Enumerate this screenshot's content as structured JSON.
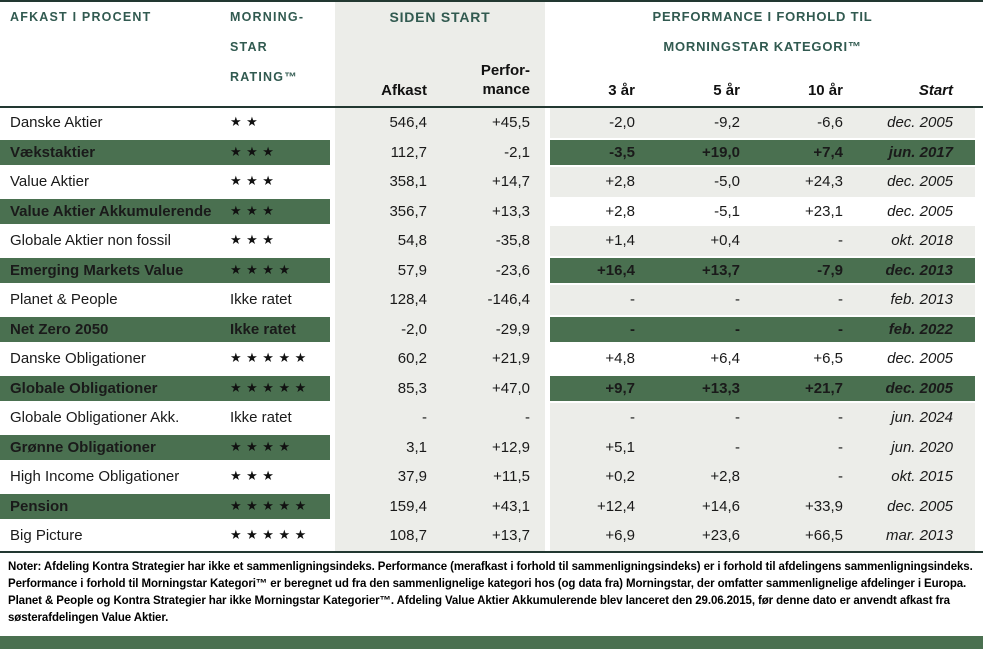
{
  "header": {
    "left_title": "AFKAST I PROCENT",
    "rating_title_line1": "MORNING-",
    "rating_title_line2": "STAR",
    "rating_title_line3": "RATING™",
    "siden_start_title": "SIDEN START",
    "afkast_col": "Afkast",
    "performance_col_line1": "Perfor-",
    "performance_col_line2": "mance",
    "right_title_line1": "PERFORMANCE I FORHOLD TIL",
    "right_title_line2": "MORNINGSTAR KATEGORI™",
    "col_3yr": "3 år",
    "col_5yr": "5 år",
    "col_10yr": "10 år",
    "col_start": "Start"
  },
  "rating_labels": {
    "not_rated": "Ikke ratet"
  },
  "chart_data": {
    "type": "table",
    "columns": [
      "Afkast",
      "Performance",
      "3 år",
      "5 år",
      "10 år",
      "Start"
    ],
    "rows": [
      {
        "name": "Danske Aktier",
        "stars": 2,
        "afkast": "546,4",
        "performance": "+45,5",
        "yr3": "-2,0",
        "yr5": "-9,2",
        "yr10": "-6,6",
        "start": "dec. 2005",
        "left_bg": "white",
        "right_bg": "gray"
      },
      {
        "name": "Vækstaktier",
        "stars": 3,
        "afkast": "112,7",
        "performance": "-2,1",
        "yr3": "-3,5",
        "yr5": "+19,0",
        "yr10": "+7,4",
        "start": "jun. 2017",
        "left_bg": "green",
        "right_bg": "green"
      },
      {
        "name": "Value Aktier",
        "stars": 3,
        "afkast": "358,1",
        "performance": "+14,7",
        "yr3": "+2,8",
        "yr5": "-5,0",
        "yr10": "+24,3",
        "start": "dec. 2005",
        "left_bg": "white",
        "right_bg": "gray"
      },
      {
        "name": "Value Aktier Akkumulerende",
        "stars": 3,
        "afkast": "356,7",
        "performance": "+13,3",
        "yr3": "+2,8",
        "yr5": "-5,1",
        "yr10": "+23,1",
        "start": "dec. 2005",
        "left_bg": "green",
        "right_bg": "white"
      },
      {
        "name": "Globale Aktier non fossil",
        "stars": 3,
        "afkast": "54,8",
        "performance": "-35,8",
        "yr3": "+1,4",
        "yr5": "+0,4",
        "yr10": "-",
        "start": "okt. 2018",
        "left_bg": "white",
        "right_bg": "gray"
      },
      {
        "name": "Emerging Markets Value",
        "stars": 4,
        "afkast": "57,9",
        "performance": "-23,6",
        "yr3": "+16,4",
        "yr5": "+13,7",
        "yr10": "-7,9",
        "start": "dec. 2013",
        "left_bg": "green",
        "right_bg": "green"
      },
      {
        "name": "Planet & People",
        "stars": 0,
        "afkast": "128,4",
        "performance": "-146,4",
        "yr3": "-",
        "yr5": "-",
        "yr10": "-",
        "start": "feb. 2013",
        "left_bg": "white",
        "right_bg": "gray"
      },
      {
        "name": "Net Zero 2050",
        "stars": 0,
        "afkast": "-2,0",
        "performance": "-29,9",
        "yr3": "-",
        "yr5": "-",
        "yr10": "-",
        "start": "feb. 2022",
        "left_bg": "green",
        "right_bg": "green"
      },
      {
        "name": "Danske Obligationer",
        "stars": 5,
        "afkast": "60,2",
        "performance": "+21,9",
        "yr3": "+4,8",
        "yr5": "+6,4",
        "yr10": "+6,5",
        "start": "dec. 2005",
        "left_bg": "white",
        "right_bg": "white"
      },
      {
        "name": "Globale Obligationer",
        "stars": 5,
        "afkast": "85,3",
        "performance": "+47,0",
        "yr3": "+9,7",
        "yr5": "+13,3",
        "yr10": "+21,7",
        "start": "dec. 2005",
        "left_bg": "green",
        "right_bg": "green"
      },
      {
        "name": "Globale Obligationer Akk.",
        "stars": 0,
        "afkast": "-",
        "performance": "-",
        "yr3": "-",
        "yr5": "-",
        "yr10": "-",
        "start": "jun. 2024",
        "left_bg": "white",
        "right_bg": "gray"
      },
      {
        "name": "Grønne Obligationer",
        "stars": 4,
        "afkast": "3,1",
        "performance": "+12,9",
        "yr3": "+5,1",
        "yr5": "-",
        "yr10": "-",
        "start": "jun. 2020",
        "left_bg": "green",
        "right_bg": "gray"
      },
      {
        "name": "High Income Obligationer",
        "stars": 3,
        "afkast": "37,9",
        "performance": "+11,5",
        "yr3": "+0,2",
        "yr5": "+2,8",
        "yr10": "-",
        "start": "okt. 2015",
        "left_bg": "white",
        "right_bg": "gray"
      },
      {
        "name": "Pension",
        "stars": 5,
        "afkast": "159,4",
        "performance": "+43,1",
        "yr3": "+12,4",
        "yr5": "+14,6",
        "yr10": "+33,9",
        "start": "dec. 2005",
        "left_bg": "green",
        "right_bg": "gray"
      },
      {
        "name": "Big Picture",
        "stars": 5,
        "afkast": "108,7",
        "performance": "+13,7",
        "yr3": "+6,9",
        "yr5": "+23,6",
        "yr10": "+66,5",
        "start": "mar. 2013",
        "left_bg": "white",
        "right_bg": "gray"
      }
    ]
  },
  "notes": {
    "text": "Noter: Afdeling Kontra Strategier har ikke et sammenligningsindeks. Performance (merafkast i forhold til sammenligningsindeks) er i forhold til afdelingens sammenligningsindeks. Performance i forhold til Morningstar Kategori™ er beregnet ud fra den sammenlignelige kategori hos (og data fra) Morningstar, der omfatter sammenlignelige afdelinger i Europa. Planet & People og Kontra Strategier har ikke Morningstar Kategorier™. Afdeling Value Aktier Akkumulerende blev lanceret den 29.06.2015, før denne dato er anvendt afkast fra søsterafdelingen Value Aktier."
  },
  "colors": {
    "green": "#4a7050",
    "gray": "#ecede9",
    "teal": "#315a50",
    "line": "#223831"
  }
}
